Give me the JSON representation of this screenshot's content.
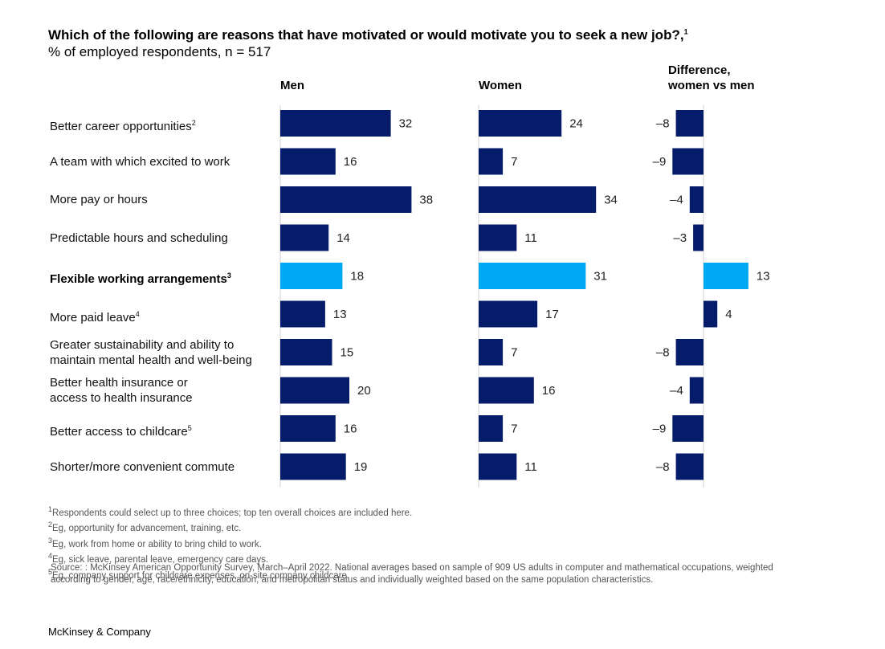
{
  "title": "Which of the following are reasons that have motivated or would motivate you to seek a new job?,",
  "title_sup": "1",
  "subtitle": "% of employed respondents, n = 517",
  "columns": {
    "men": "Men",
    "women": "Women",
    "diff_line1": "Difference,",
    "diff_line2": "women vs men"
  },
  "colors": {
    "primary": "#051c6b",
    "highlight": "#00a9f4"
  },
  "chart_data": {
    "type": "bar",
    "orientation": "horizontal",
    "categories": [
      {
        "line1": "Better career opportunities",
        "line2": "",
        "sup": "2",
        "highlight": false
      },
      {
        "line1": "A team with which excited to work",
        "line2": "",
        "sup": "",
        "highlight": false
      },
      {
        "line1": "More pay or hours",
        "line2": "",
        "sup": "",
        "highlight": false
      },
      {
        "line1": "Predictable hours and scheduling",
        "line2": "",
        "sup": "",
        "highlight": false
      },
      {
        "line1": "Flexible working arrangements",
        "line2": "",
        "sup": "3",
        "highlight": true
      },
      {
        "line1": "More paid leave",
        "line2": "",
        "sup": "4",
        "highlight": false
      },
      {
        "line1": "Greater sustainability and ability to",
        "line2": "maintain mental health and well-being",
        "sup": "",
        "highlight": false
      },
      {
        "line1": "Better health insurance or",
        "line2": "access to health insurance",
        "sup": "",
        "highlight": false
      },
      {
        "line1": "Better access to childcare",
        "line2": "",
        "sup": "5",
        "highlight": false
      },
      {
        "line1": "Shorter/more convenient commute",
        "line2": "",
        "sup": "",
        "highlight": false
      }
    ],
    "series": [
      {
        "name": "Men",
        "values": [
          32,
          16,
          38,
          14,
          18,
          13,
          15,
          20,
          16,
          19
        ]
      },
      {
        "name": "Women",
        "values": [
          24,
          7,
          34,
          11,
          31,
          17,
          7,
          16,
          7,
          11
        ]
      },
      {
        "name": "Difference, women vs men",
        "values": [
          -8,
          -9,
          -4,
          -3,
          13,
          4,
          -8,
          -4,
          -9,
          -8
        ]
      }
    ],
    "diff_labels": [
      "–8",
      "–9",
      "–4",
      "–3",
      "13",
      "4",
      "–8",
      "–4",
      "–9",
      "–8"
    ],
    "highlight_index": 4
  },
  "footnotes": [
    {
      "sup": "1",
      "text": "Respondents could select up to three choices; top ten overall choices are included here."
    },
    {
      "sup": "2",
      "text": "Eg, opportunity for advancement, training, etc."
    },
    {
      "sup": "3",
      "text": "Eg, work from home or ability to bring child to work."
    },
    {
      "sup": "4",
      "text": "Eg, sick leave, parental leave, emergency care days."
    },
    {
      "sup": "5",
      "text": "Eg, company support for childcare expenses, on-site company childcare."
    }
  ],
  "source": "Source: : McKinsey American Opportunity Survey, March–April 2022. National averages based on sample of 909 US adults in computer and mathematical occupations, weighted according to gender, age, race/ethnicity, education, and metropolitan status and individually weighted based on the same population characteristics.",
  "brand": "McKinsey & Company"
}
